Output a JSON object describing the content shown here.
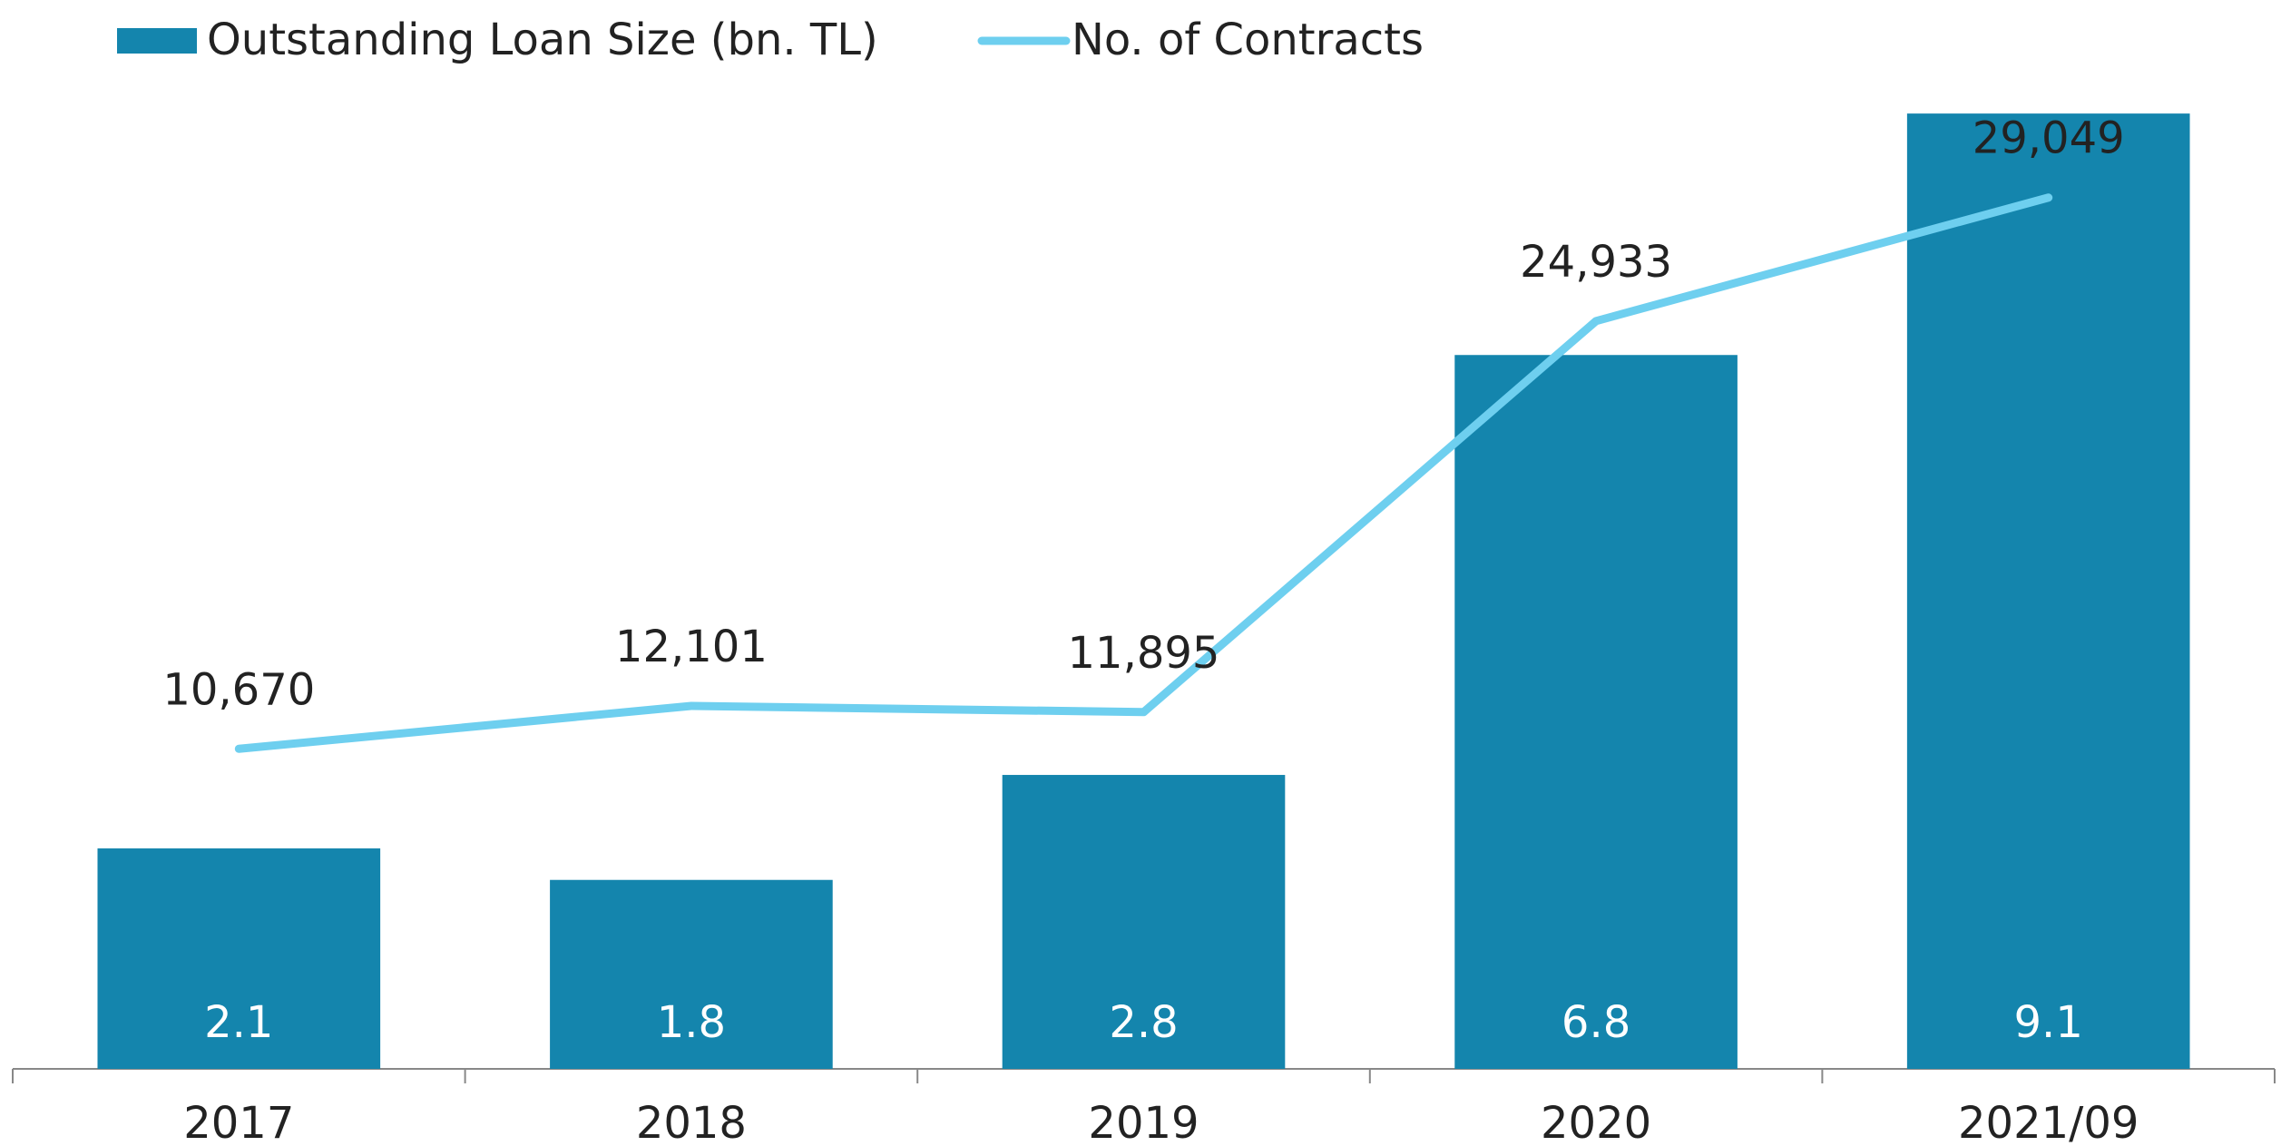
{
  "chart_data": {
    "type": "bar",
    "categories": [
      "2017",
      "2018",
      "2019",
      "2020",
      "2021/09"
    ],
    "series": [
      {
        "name": "Outstanding Loan Size (bn. TL)",
        "type": "bar",
        "color": "#1485ad",
        "label_color": "#ffffff",
        "values": [
          2.1,
          1.8,
          2.8,
          6.8,
          9.1
        ]
      },
      {
        "name": "No. of Contracts",
        "type": "line",
        "axis": "y2",
        "color": "#6ecfef",
        "values": [
          10670,
          12101,
          11895,
          24933,
          29049
        ],
        "value_labels": [
          "10,670",
          "12,101",
          "11,895",
          "24,933",
          "29,049"
        ]
      }
    ],
    "ylim": [
      0,
      10
    ],
    "y2lim": [
      0,
      35000
    ],
    "legend": "top-left"
  }
}
